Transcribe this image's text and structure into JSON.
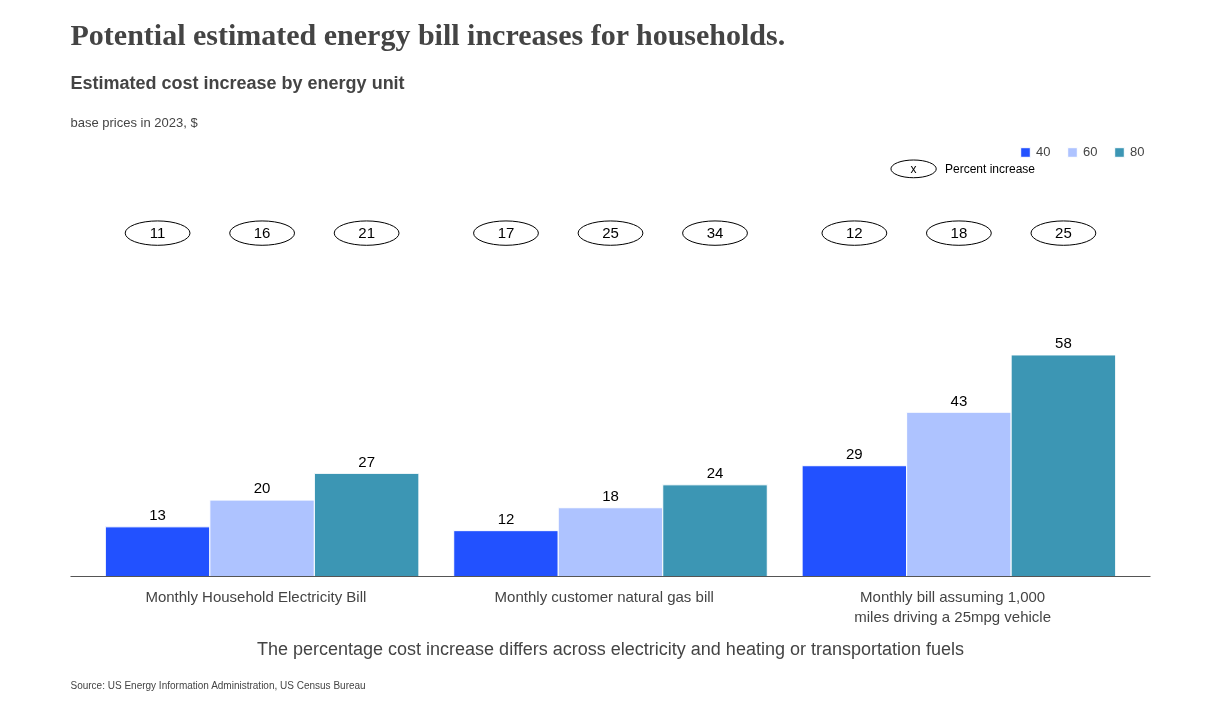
{
  "chart_data": {
    "type": "bar",
    "title": "Potential estimated energy bill increases for households.",
    "subtitle": "Estimated cost increase by energy unit",
    "legend_title": "Percent increase",
    "categories": [
      "Monthly  Household  Electricity  Bill",
      "Monthly  customer  natural gas  bill",
      "Monthly  bill  assuming  1,000\nmiles  driving  a 25mpg  vehicle"
    ],
    "series": [
      {
        "name": "40",
        "color": "#2251ff",
        "values": [
          13,
          12,
          29
        ]
      },
      {
        "name": "60",
        "color": "#aec3ff",
        "values": [
          20,
          18,
          43
        ]
      },
      {
        "name": "80",
        "color": "#3c96b4",
        "values": [
          27,
          24,
          58
        ]
      }
    ],
    "data_labels": true,
    "legend": "top right",
    "grid": false,
    "annotations": [
      "11",
      "16",
      "21",
      "17",
      "25",
      "34",
      "12",
      "18",
      "25",
      "x",
      "base prices in 2023, $",
      "The percentage cost increase differs across electricity and heating or transportation fuels",
      "Source: US Energy Information Administration, US Census Bureau"
    ]
  }
}
